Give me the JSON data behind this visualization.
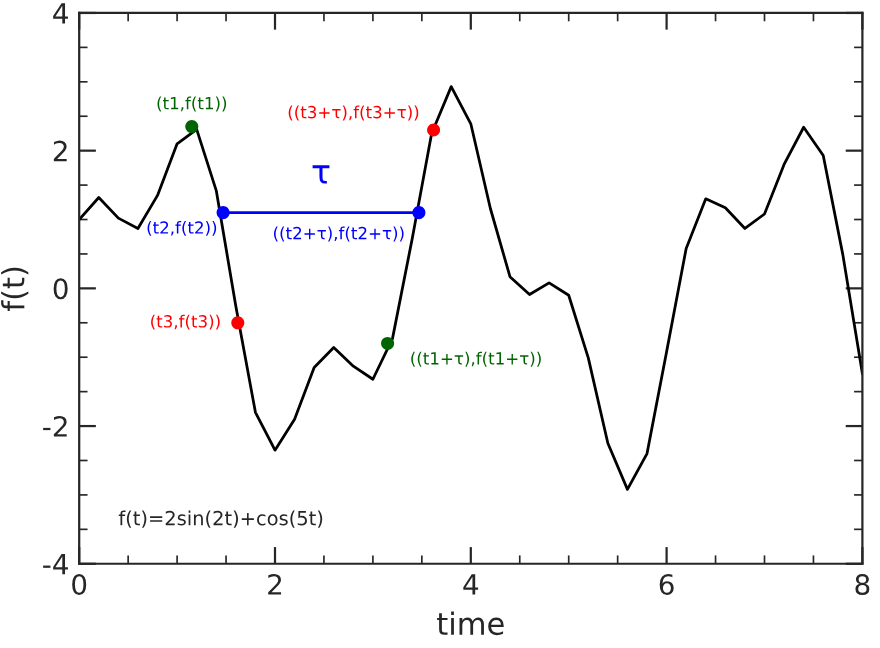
{
  "chart_data": {
    "type": "line",
    "xlabel": "time",
    "ylabel": "f(t)",
    "xlim": [
      0,
      8
    ],
    "ylim": [
      -4,
      4
    ],
    "xticks": [
      0,
      2,
      4,
      6,
      8
    ],
    "yticks": [
      -4,
      -2,
      0,
      2,
      4
    ],
    "grid": false,
    "legend": false,
    "x": [
      0,
      0.2,
      0.4,
      0.6,
      0.8,
      1.0,
      1.2,
      1.4,
      1.6,
      1.8,
      2.0,
      2.2,
      2.4,
      2.6,
      2.8,
      3.0,
      3.2,
      3.4,
      3.6,
      3.8,
      4.0,
      4.2,
      4.4,
      4.6,
      4.8,
      5.0,
      5.2,
      5.4,
      5.6,
      5.8,
      6.0,
      6.2,
      6.4,
      6.6,
      6.8,
      7.0,
      7.2,
      7.4,
      7.6,
      7.8,
      8.0
    ],
    "series": [
      {
        "color": "#000000",
        "values": [
          1.0,
          1.32,
          1.02,
          0.87,
          1.35,
          2.1,
          2.31,
          1.42,
          -0.26,
          -1.8,
          -2.35,
          -1.9,
          -1.15,
          -0.86,
          -1.13,
          -1.32,
          -0.73,
          0.71,
          2.25,
          2.93,
          2.39,
          1.16,
          0.17,
          -0.09,
          0.08,
          -0.1,
          -1.01,
          -2.25,
          -2.92,
          -2.4,
          -0.92,
          0.58,
          1.3,
          1.17,
          0.87,
          1.08,
          1.8,
          2.34,
          1.93,
          0.49,
          -1.24
        ]
      },
      {
        "name": "τ",
        "color": "#0000ff",
        "x": [
          1.47,
          3.47
        ],
        "values": [
          1.1,
          1.1
        ]
      },
      {
        "type": "scatter",
        "name": "(t1,f(t1))",
        "color": "#006400",
        "x": [
          1.15
        ],
        "values": [
          2.35
        ]
      },
      {
        "type": "scatter",
        "name": "(t2,f(t2))",
        "color": "#0000ff",
        "x": [
          1.47
        ],
        "values": [
          1.1
        ]
      },
      {
        "type": "scatter",
        "name": "(t3,f(t3))",
        "color": "#ff0000",
        "x": [
          1.62
        ],
        "values": [
          -0.5
        ]
      },
      {
        "type": "scatter",
        "name": "((t1+τ),f(t1+τ))",
        "color": "#006400",
        "x": [
          3.15
        ],
        "values": [
          -0.8
        ]
      },
      {
        "type": "scatter",
        "name": "((t2+τ),f(t2+τ))",
        "color": "#0000ff",
        "x": [
          3.47
        ],
        "values": [
          1.1
        ]
      },
      {
        "type": "scatter",
        "name": "((t3+τ),f(t3+τ))",
        "color": "#ff0000",
        "x": [
          3.62
        ],
        "values": [
          2.3
        ]
      }
    ],
    "annotations": [
      "f(t)=2sin(2t)+cos(5t)"
    ]
  }
}
